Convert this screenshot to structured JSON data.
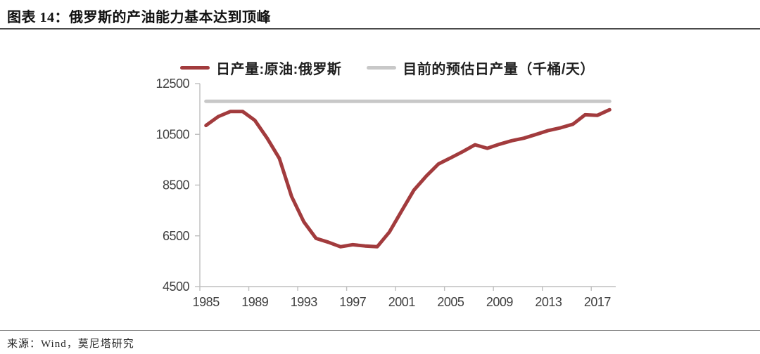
{
  "header": {
    "title": "图表 14：俄罗斯的产油能力基本达到顶峰"
  },
  "footer": {
    "source": "来源：Wind，莫尼塔研究"
  },
  "chart_data": {
    "type": "line",
    "title": "俄罗斯的产油能力基本达到顶峰",
    "x": [
      1985,
      1986,
      1987,
      1988,
      1989,
      1990,
      1991,
      1992,
      1993,
      1994,
      1995,
      1996,
      1997,
      1998,
      1999,
      2000,
      2001,
      2002,
      2003,
      2004,
      2005,
      2006,
      2007,
      2008,
      2009,
      2010,
      2011,
      2012,
      2013,
      2014,
      2015,
      2016,
      2017,
      2018
    ],
    "series": [
      {
        "name": "日产量:原油:俄罗斯",
        "color": "#A23B3D",
        "values": [
          10850,
          11200,
          11400,
          11400,
          11050,
          10350,
          9550,
          8050,
          7050,
          6400,
          6250,
          6070,
          6150,
          6100,
          6070,
          6650,
          7480,
          8300,
          8850,
          9330,
          9570,
          9820,
          10090,
          9950,
          10110,
          10250,
          10350,
          10500,
          10650,
          10760,
          10900,
          11270,
          11250,
          11470
        ]
      },
      {
        "name": "目前的预估日产量（千桶/天）",
        "color": "#C8C8C8",
        "constant_value": 11800
      }
    ],
    "ylim": [
      4500,
      12500
    ],
    "y_ticks": [
      4500,
      6500,
      8500,
      10500,
      12500
    ],
    "x_tick_labels": [
      1985,
      1989,
      1993,
      1997,
      2001,
      2005,
      2009,
      2013,
      2017
    ],
    "legend_position": "top",
    "grid": false,
    "axis_color": "#BFBFBF",
    "tick_label_color": "#3f3f3f"
  }
}
